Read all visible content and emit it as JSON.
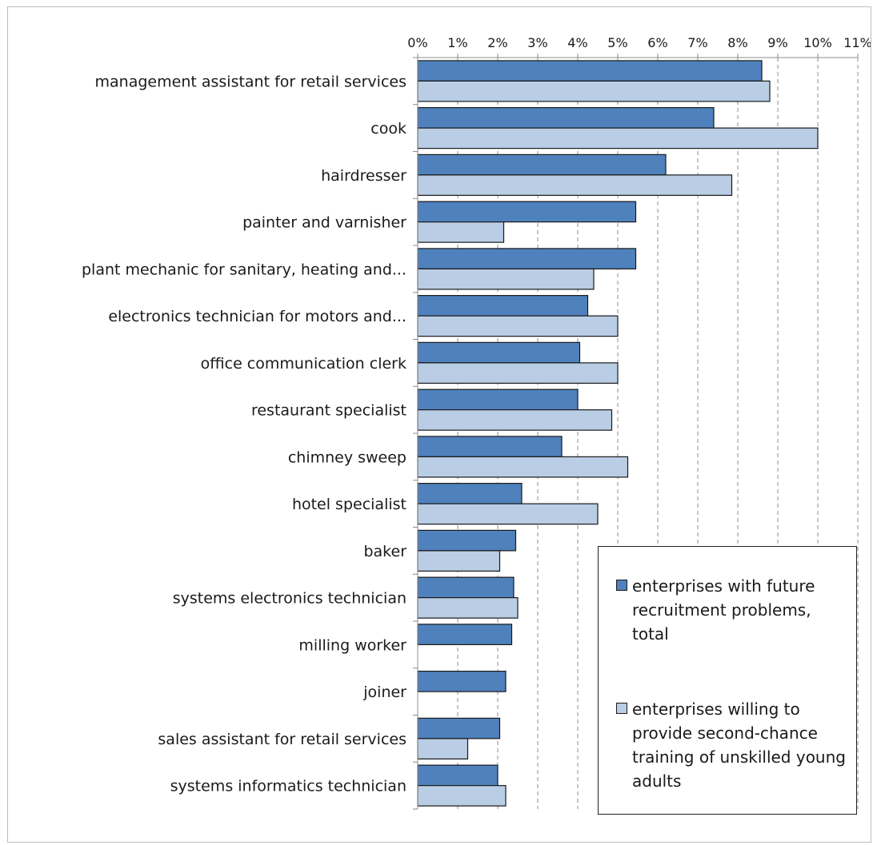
{
  "chart_data": {
    "type": "bar",
    "orientation": "horizontal",
    "categories": [
      "management assistant for retail services",
      "cook",
      "hairdresser",
      "painter and varnisher",
      "plant mechanic for sanitary, heating and...",
      "electronics technician for motors and...",
      "office communication clerk",
      "restaurant specialist",
      "chimney sweep",
      "hotel specialist",
      "baker",
      "systems electronics technician",
      "milling worker",
      "joiner",
      "sales assistant for retail services",
      "systems informatics technician"
    ],
    "series": [
      {
        "name": "enterprises with future recruitment problems, total",
        "color": "#4f81bd",
        "values": [
          8.6,
          7.4,
          6.2,
          5.45,
          5.45,
          4.25,
          4.05,
          4.0,
          3.6,
          2.6,
          2.45,
          2.4,
          2.35,
          2.2,
          2.05,
          2.0
        ]
      },
      {
        "name": "enterprises willing to provide second-chance training of unskilled young adults",
        "color": "#b9cde5",
        "values": [
          8.8,
          10.0,
          7.85,
          2.15,
          4.4,
          5.0,
          5.0,
          4.85,
          5.25,
          4.5,
          2.05,
          2.5,
          0,
          0,
          1.25,
          2.2
        ]
      }
    ],
    "xlim": [
      0,
      11
    ],
    "x_ticks": [
      "0%",
      "1%",
      "2%",
      "3%",
      "4%",
      "5%",
      "6%",
      "7%",
      "8%",
      "9%",
      "10%",
      "11%"
    ],
    "axis_position": "top",
    "grid": "vertical-dashed",
    "legend_position": "bottom-right"
  }
}
